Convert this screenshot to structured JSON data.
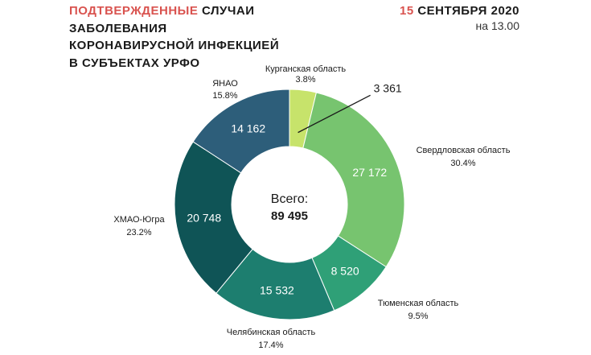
{
  "header": {
    "title_accent": "ПОДТВЕРЖДЕННЫЕ",
    "title_line1_rest": " СЛУЧАИ",
    "title_line2": "ЗАБОЛЕВАНИЯ",
    "title_line3": "КОРОНАВИРУСНОЙ ИНФЕКЦИЕЙ",
    "title_line4": "В СУБЪЕКТАХ УРФО",
    "date_accent": "15",
    "date_rest": " СЕНТЯБРЯ 2020",
    "time": "на 13.00"
  },
  "colors": {
    "accent": "#d9534f"
  },
  "chart_data": {
    "type": "donut",
    "center_label": "Всего:",
    "total": "89 495",
    "slices": [
      {
        "name": "Курганская область",
        "value": 3361,
        "value_label": "3 361",
        "percent": "3.8%",
        "color": "#c7e36b"
      },
      {
        "name": "Свердловская область",
        "value": 27172,
        "value_label": "27 172",
        "percent": "30.4%",
        "color": "#77c46f"
      },
      {
        "name": "Тюменская область",
        "value": 8520,
        "value_label": "8 520",
        "percent": "9.5%",
        "color": "#2fa077"
      },
      {
        "name": "Челябинская область",
        "value": 15532,
        "value_label": "15 532",
        "percent": "17.4%",
        "color": "#1d7e6f"
      },
      {
        "name": "ХМАО-Югра",
        "value": 20748,
        "value_label": "20 748",
        "percent": "23.2%",
        "color": "#0f5456"
      },
      {
        "name": "ЯНАО",
        "value": 14162,
        "value_label": "14 162",
        "percent": "15.8%",
        "color": "#2d5e7a"
      }
    ]
  }
}
